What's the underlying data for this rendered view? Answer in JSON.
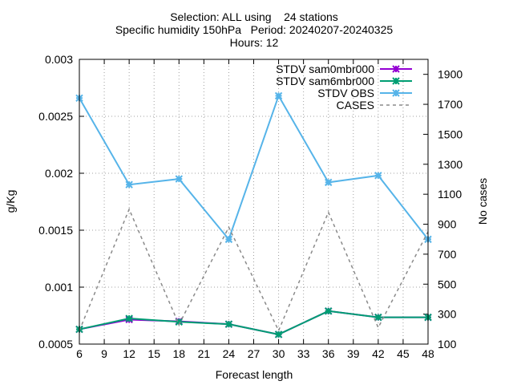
{
  "chart_data": {
    "type": "line",
    "title_lines": [
      "Selection: ALL using    24 stations",
      "Specific humidity 150hPa   Period: 20240207-20240325",
      "Hours: 12"
    ],
    "xlabel": "Forecast length",
    "ylabel": "g/Kg",
    "y2label": "No cases",
    "x": [
      6,
      12,
      18,
      24,
      30,
      36,
      42,
      48
    ],
    "xlim": [
      6,
      48
    ],
    "xticks": [
      6,
      9,
      12,
      15,
      18,
      21,
      24,
      27,
      30,
      33,
      36,
      39,
      42,
      45,
      48
    ],
    "ylim": [
      0.0005,
      0.003
    ],
    "yticks": [
      0.0005,
      0.001,
      0.0015,
      0.002,
      0.0025,
      0.003
    ],
    "ytick_labels": [
      "0.0005",
      "0.001",
      "0.0015",
      "0.002",
      "0.0025",
      "0.003"
    ],
    "y2lim": [
      100,
      2000
    ],
    "y2ticks": [
      100,
      300,
      500,
      700,
      900,
      1100,
      1300,
      1500,
      1700,
      1900
    ],
    "grid": true,
    "legend_position": "top-right",
    "series": [
      {
        "name": "STDV sam0mbr000",
        "axis": "y",
        "color": "#9400d3",
        "dash": false,
        "marker": "x",
        "values": [
          0.00063,
          0.000715,
          0.0007,
          0.000675,
          0.000585,
          0.00079,
          0.000735,
          0.000735
        ]
      },
      {
        "name": "STDV sam6mbr000",
        "axis": "y",
        "color": "#009e73",
        "dash": false,
        "marker": "x",
        "values": [
          0.00063,
          0.000725,
          0.000695,
          0.000675,
          0.000585,
          0.00079,
          0.000735,
          0.000735
        ]
      },
      {
        "name": "STDV OBS",
        "axis": "y",
        "color": "#56b4e9",
        "dash": false,
        "marker": "x",
        "values": [
          0.00266,
          0.0019,
          0.00195,
          0.00142,
          0.00268,
          0.00192,
          0.00198,
          0.00142
        ]
      },
      {
        "name": "CASES",
        "axis": "y2",
        "color": "#8a8a8a",
        "dash": true,
        "marker": "none",
        "values": [
          190,
          1000,
          230,
          880,
          190,
          980,
          210,
          850
        ]
      }
    ]
  }
}
